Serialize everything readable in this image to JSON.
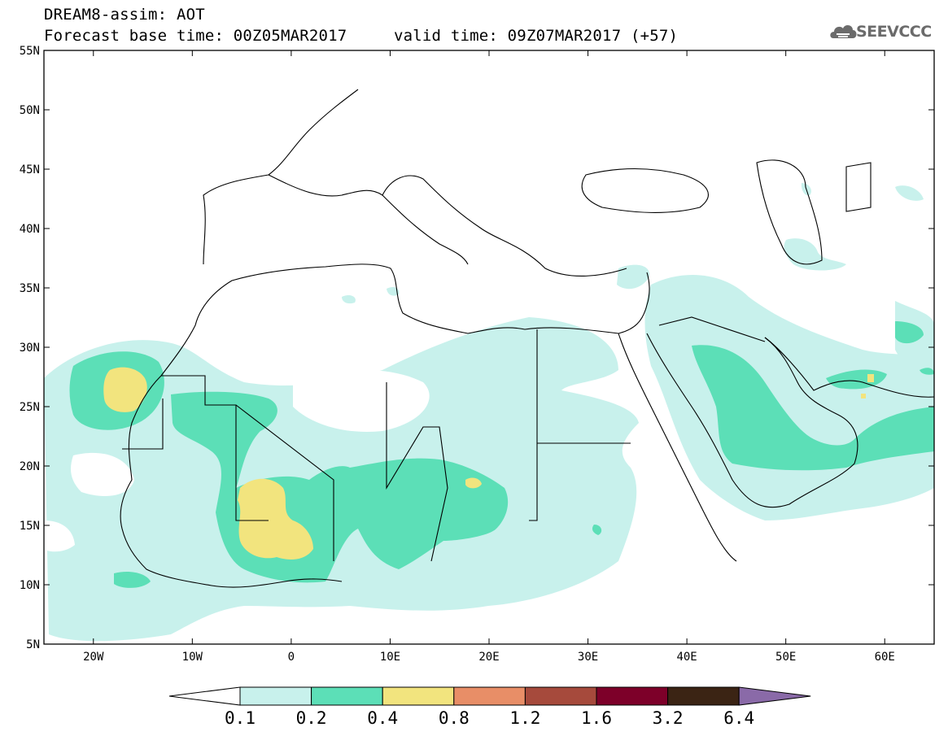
{
  "header": {
    "line1": "DREAM8-assim: AOT",
    "line2": "Forecast base time: 00Z05MAR2017",
    "line3": "valid time: 09Z07MAR2017 (+57)"
  },
  "logo": {
    "text": "SEEVCCC",
    "icon": "cloud-icon"
  },
  "map": {
    "lon_range": [
      -25,
      65
    ],
    "lat_range": [
      5,
      55
    ],
    "lat_ticks": [
      "5N",
      "10N",
      "15N",
      "20N",
      "25N",
      "30N",
      "35N",
      "40N",
      "45N",
      "50N",
      "55N"
    ],
    "lon_ticks": [
      "20W",
      "10W",
      "0",
      "10E",
      "20E",
      "30E",
      "40E",
      "50E",
      "60E"
    ]
  },
  "colorbar": {
    "labels": [
      "0.1",
      "0.2",
      "0.4",
      "0.8",
      "1.2",
      "1.6",
      "3.2",
      "6.4"
    ],
    "colors": [
      "#ffffff",
      "#c8f1ec",
      "#5cdfb7",
      "#f2e47e",
      "#e88e67",
      "#a64a3c",
      "#7d0029",
      "#3b2414",
      "#8a6aa8"
    ]
  }
}
